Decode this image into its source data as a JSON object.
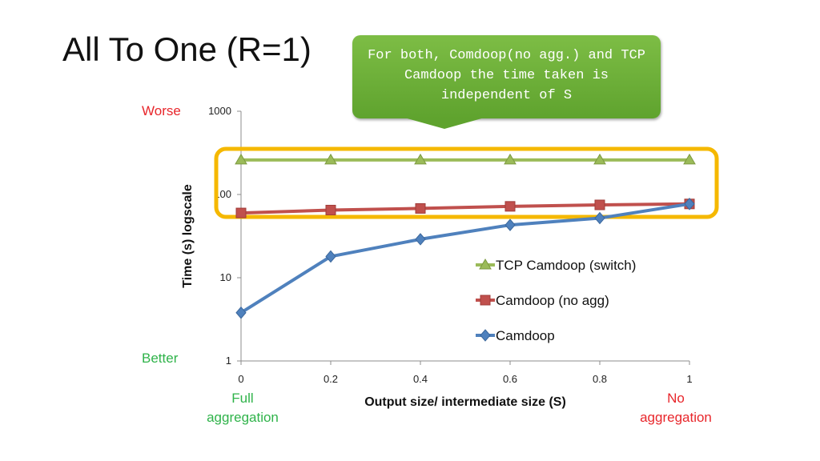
{
  "slide": {
    "title": "All To One (R=1)",
    "callout": "For both, Comdoop(no agg.) and TCP Camdoop the time taken is independent of S",
    "worse_label": "Worse",
    "better_label": "Better",
    "left_note": "Full aggregation",
    "right_note": "No aggregation",
    "colors": {
      "callout_green": "#6bb03a",
      "highlight_box": "#f5b800",
      "worse_red": "#e8262b",
      "better_green": "#2fb34a"
    }
  },
  "chart_data": {
    "type": "line",
    "xlabel": "Output size/ intermediate size (S)",
    "ylabel": "Time (s) logscale",
    "x": [
      0,
      0.2,
      0.4,
      0.6,
      0.8,
      1
    ],
    "x_tick_labels": [
      "0",
      "0.2",
      "0.4",
      "0.6",
      "0.8",
      "1"
    ],
    "y_scale": "log",
    "ylim": [
      1,
      1000
    ],
    "y_ticks": [
      1,
      10,
      100,
      1000
    ],
    "y_tick_labels": [
      "1",
      "10",
      "100",
      "1000"
    ],
    "grid": false,
    "legend_position": "center-right",
    "series": [
      {
        "name": "TCP Camdoop (switch)",
        "values": [
          260,
          260,
          260,
          260,
          260,
          260
        ],
        "color": "#9bbb59",
        "marker": "triangle"
      },
      {
        "name": "Camdoop (no agg)",
        "values": [
          60,
          65,
          68,
          72,
          75,
          77
        ],
        "color": "#c0504d",
        "marker": "square"
      },
      {
        "name": "Camdoop",
        "values": [
          3.8,
          18,
          29,
          43,
          52,
          77
        ],
        "color": "#4f81bd",
        "marker": "diamond"
      }
    ]
  }
}
